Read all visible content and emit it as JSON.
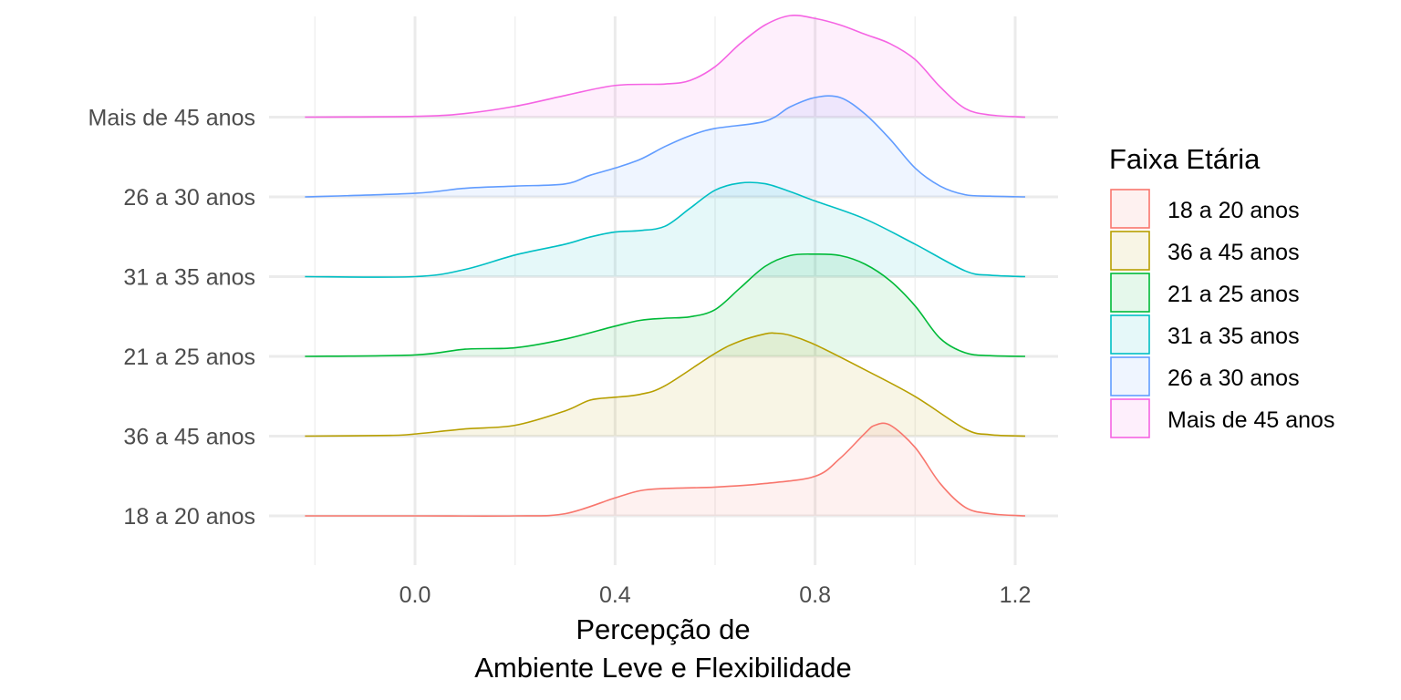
{
  "chart_data": {
    "type": "ridgeline",
    "xlabel_lines": [
      "Percepção de",
      "Ambiente Leve e Flexibilidade"
    ],
    "ylabel": "",
    "xlim": [
      -0.22,
      1.22
    ],
    "x_ticks": [
      "0.0",
      "0.4",
      "0.8",
      "1.2"
    ],
    "x_tick_values": [
      0.0,
      0.4,
      0.8,
      1.2
    ],
    "x_minor_tick_values": [
      -0.2,
      0.2,
      0.6,
      1.0
    ],
    "grid": true,
    "legend": {
      "title": "Faixa Etária",
      "position": "right",
      "entries": [
        "18 a 20 anos",
        "36 a 45 anos",
        "21 a 25 anos",
        "31 a 35 anos",
        "26 a 30 anos",
        "Mais de 45 anos"
      ]
    },
    "y_categories": [
      "18 a 20 anos",
      "36 a 45 anos",
      "21 a 25 anos",
      "31 a 35 anos",
      "26 a 30 anos",
      "Mais de 45 anos"
    ],
    "series": [
      {
        "name": "18 a 20 anos",
        "color": "#F8766D",
        "x": [
          -0.22,
          0.0,
          0.2,
          0.3,
          0.4,
          0.45,
          0.5,
          0.6,
          0.7,
          0.8,
          0.85,
          0.9,
          0.92,
          0.95,
          1.0,
          1.05,
          1.1,
          1.15,
          1.22
        ],
        "density": [
          0.0,
          0.0,
          0.0,
          0.03,
          0.25,
          0.35,
          0.38,
          0.4,
          0.45,
          0.55,
          0.8,
          1.15,
          1.26,
          1.26,
          0.95,
          0.45,
          0.12,
          0.03,
          0.0
        ]
      },
      {
        "name": "36 a 45 anos",
        "color": "#B79F00",
        "x": [
          -0.22,
          -0.05,
          0.0,
          0.1,
          0.2,
          0.3,
          0.35,
          0.4,
          0.45,
          0.5,
          0.6,
          0.65,
          0.7,
          0.72,
          0.75,
          0.8,
          0.9,
          1.0,
          1.1,
          1.15,
          1.22
        ],
        "density": [
          0.0,
          0.01,
          0.03,
          0.1,
          0.15,
          0.35,
          0.5,
          0.54,
          0.58,
          0.7,
          1.15,
          1.32,
          1.42,
          1.43,
          1.4,
          1.27,
          0.92,
          0.55,
          0.1,
          0.02,
          0.0
        ]
      },
      {
        "name": "21 a 25 anos",
        "color": "#00BA38",
        "x": [
          -0.22,
          0.0,
          0.1,
          0.2,
          0.3,
          0.4,
          0.45,
          0.5,
          0.55,
          0.6,
          0.65,
          0.7,
          0.75,
          0.8,
          0.85,
          0.9,
          0.95,
          1.0,
          1.05,
          1.1,
          1.15,
          1.22
        ],
        "density": [
          0.0,
          0.02,
          0.1,
          0.12,
          0.24,
          0.42,
          0.5,
          0.53,
          0.55,
          0.65,
          0.95,
          1.25,
          1.4,
          1.42,
          1.4,
          1.28,
          1.05,
          0.7,
          0.25,
          0.05,
          0.01,
          0.0
        ]
      },
      {
        "name": "31 a 35 anos",
        "color": "#00BFC4",
        "x": [
          -0.22,
          0.0,
          0.1,
          0.2,
          0.3,
          0.35,
          0.4,
          0.45,
          0.5,
          0.55,
          0.6,
          0.65,
          0.7,
          0.75,
          0.8,
          0.9,
          1.0,
          1.1,
          1.15,
          1.22
        ],
        "density": [
          0.0,
          0.0,
          0.1,
          0.3,
          0.45,
          0.55,
          0.62,
          0.64,
          0.7,
          0.95,
          1.2,
          1.3,
          1.29,
          1.18,
          1.05,
          0.8,
          0.45,
          0.08,
          0.02,
          0.0
        ]
      },
      {
        "name": "26 a 30 anos",
        "color": "#619CFF",
        "x": [
          -0.22,
          0.0,
          0.1,
          0.2,
          0.3,
          0.35,
          0.4,
          0.45,
          0.5,
          0.55,
          0.6,
          0.7,
          0.75,
          0.8,
          0.85,
          0.9,
          0.95,
          1.0,
          1.05,
          1.1,
          1.15,
          1.22
        ],
        "density": [
          0.0,
          0.05,
          0.12,
          0.15,
          0.18,
          0.3,
          0.4,
          0.52,
          0.7,
          0.85,
          0.95,
          1.05,
          1.25,
          1.38,
          1.38,
          1.15,
          0.8,
          0.4,
          0.15,
          0.03,
          0.01,
          0.0
        ]
      },
      {
        "name": "Mais de 45 anos",
        "color": "#F564E3",
        "x": [
          -0.22,
          0.0,
          0.1,
          0.2,
          0.3,
          0.4,
          0.5,
          0.55,
          0.6,
          0.65,
          0.7,
          0.75,
          0.8,
          0.85,
          0.9,
          0.95,
          1.0,
          1.05,
          1.1,
          1.15,
          1.22
        ],
        "density": [
          0.0,
          0.01,
          0.05,
          0.15,
          0.3,
          0.44,
          0.46,
          0.51,
          0.7,
          1.02,
          1.28,
          1.41,
          1.37,
          1.28,
          1.15,
          1.02,
          0.8,
          0.42,
          0.12,
          0.03,
          0.0
        ]
      }
    ]
  }
}
